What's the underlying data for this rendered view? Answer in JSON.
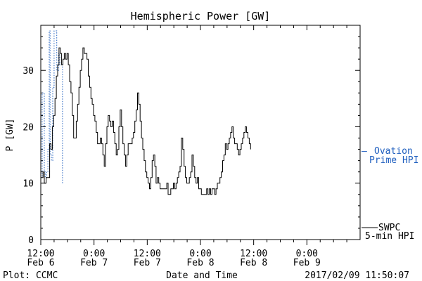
{
  "chart_data": {
    "type": "line",
    "title": "Hemispheric Power [GW]",
    "xlabel": "Date and Time",
    "ylabel": "P [GW]",
    "ylim": [
      0,
      38
    ],
    "xlim": [
      0,
      72
    ],
    "x_unit": "hours after 2017-02-06 12:00",
    "x_ticks": [
      {
        "x": 0,
        "time": "12:00",
        "date": "Feb 6"
      },
      {
        "x": 12,
        "time": "0:00",
        "date": "Feb 7"
      },
      {
        "x": 24,
        "time": "12:00",
        "date": "Feb 7"
      },
      {
        "x": 36,
        "time": "0:00",
        "date": "Feb 8"
      },
      {
        "x": 48,
        "time": "12:00",
        "date": "Feb 8"
      },
      {
        "x": 60,
        "time": "0:00",
        "date": "Feb 9"
      }
    ],
    "y_ticks": [
      0,
      10,
      20,
      30
    ],
    "grid": false,
    "series": [
      {
        "name": "Ovation Prime HPI",
        "color": "#1f5fbf",
        "style": "dashed",
        "values": [
          [
            0,
            11
          ],
          [
            0.3,
            26
          ],
          [
            0.6,
            26
          ],
          [
            0.8,
            12
          ],
          [
            1.0,
            11
          ],
          [
            1.3,
            12
          ],
          [
            1.6,
            16
          ],
          [
            1.9,
            37
          ],
          [
            2.1,
            15
          ],
          [
            2.4,
            14
          ],
          [
            2.7,
            27
          ],
          [
            3.0,
            37
          ],
          [
            3.3,
            37
          ],
          [
            3.6,
            30
          ],
          [
            4.0,
            33
          ],
          [
            4.3,
            31
          ],
          [
            4.6,
            31
          ],
          [
            4.9,
            10
          ]
        ]
      },
      {
        "name": "SWPC 5-min HPI",
        "color": "#000000",
        "style": "solid",
        "values": [
          [
            0,
            11
          ],
          [
            0.5,
            12
          ],
          [
            0.8,
            10
          ],
          [
            1.2,
            11
          ],
          [
            1.6,
            11
          ],
          [
            2.0,
            17
          ],
          [
            2.3,
            16
          ],
          [
            2.6,
            20
          ],
          [
            2.9,
            22
          ],
          [
            3.2,
            25
          ],
          [
            3.5,
            29
          ],
          [
            3.8,
            31
          ],
          [
            4.1,
            34
          ],
          [
            4.4,
            33
          ],
          [
            4.7,
            31
          ],
          [
            5.0,
            32
          ],
          [
            5.3,
            33
          ],
          [
            5.6,
            32
          ],
          [
            5.9,
            33
          ],
          [
            6.2,
            31
          ],
          [
            6.5,
            28
          ],
          [
            6.8,
            26
          ],
          [
            7.1,
            22
          ],
          [
            7.4,
            18
          ],
          [
            7.7,
            18
          ],
          [
            8.0,
            21
          ],
          [
            8.3,
            24
          ],
          [
            8.6,
            27
          ],
          [
            8.9,
            30
          ],
          [
            9.2,
            32
          ],
          [
            9.5,
            34
          ],
          [
            9.8,
            33
          ],
          [
            10.1,
            33
          ],
          [
            10.4,
            32
          ],
          [
            10.7,
            29
          ],
          [
            11.0,
            27
          ],
          [
            11.3,
            25
          ],
          [
            11.6,
            24
          ],
          [
            11.9,
            22
          ],
          [
            12.2,
            21
          ],
          [
            12.5,
            19
          ],
          [
            12.8,
            17
          ],
          [
            13.1,
            17
          ],
          [
            13.4,
            18
          ],
          [
            13.7,
            17
          ],
          [
            14.0,
            15
          ],
          [
            14.3,
            13
          ],
          [
            14.6,
            17
          ],
          [
            14.9,
            20
          ],
          [
            15.2,
            22
          ],
          [
            15.5,
            21
          ],
          [
            15.8,
            20
          ],
          [
            16.1,
            21
          ],
          [
            16.4,
            19
          ],
          [
            16.7,
            17
          ],
          [
            17.0,
            15
          ],
          [
            17.3,
            16
          ],
          [
            17.6,
            20
          ],
          [
            17.9,
            23
          ],
          [
            18.2,
            20
          ],
          [
            18.5,
            17
          ],
          [
            18.8,
            15
          ],
          [
            19.1,
            13
          ],
          [
            19.4,
            15
          ],
          [
            19.7,
            17
          ],
          [
            20.0,
            17
          ],
          [
            20.3,
            17
          ],
          [
            20.6,
            18
          ],
          [
            20.9,
            19
          ],
          [
            21.2,
            21
          ],
          [
            21.5,
            23
          ],
          [
            21.8,
            26
          ],
          [
            22.1,
            24
          ],
          [
            22.4,
            21
          ],
          [
            22.7,
            18
          ],
          [
            23.0,
            16
          ],
          [
            23.3,
            14
          ],
          [
            23.6,
            12
          ],
          [
            23.9,
            11
          ],
          [
            24.2,
            10
          ],
          [
            24.5,
            9
          ],
          [
            24.8,
            11
          ],
          [
            25.1,
            14
          ],
          [
            25.4,
            15
          ],
          [
            25.7,
            13
          ],
          [
            26.0,
            10
          ],
          [
            26.3,
            11
          ],
          [
            26.6,
            10
          ],
          [
            26.9,
            9
          ],
          [
            27.2,
            9
          ],
          [
            27.5,
            9
          ],
          [
            27.8,
            9
          ],
          [
            28.1,
            9
          ],
          [
            28.4,
            10
          ],
          [
            28.7,
            8
          ],
          [
            29.0,
            8
          ],
          [
            29.3,
            9
          ],
          [
            29.6,
            9
          ],
          [
            29.9,
            10
          ],
          [
            30.2,
            9
          ],
          [
            30.5,
            10
          ],
          [
            30.8,
            11
          ],
          [
            31.1,
            12
          ],
          [
            31.4,
            13
          ],
          [
            31.7,
            18
          ],
          [
            32.0,
            16
          ],
          [
            32.3,
            13
          ],
          [
            32.6,
            11
          ],
          [
            32.9,
            10
          ],
          [
            33.2,
            10
          ],
          [
            33.5,
            11
          ],
          [
            33.8,
            12
          ],
          [
            34.1,
            15
          ],
          [
            34.4,
            13
          ],
          [
            34.7,
            11
          ],
          [
            35.0,
            10
          ],
          [
            35.3,
            11
          ],
          [
            35.6,
            9
          ],
          [
            35.9,
            9
          ],
          [
            36.2,
            8
          ],
          [
            36.5,
            8
          ],
          [
            36.8,
            8
          ],
          [
            37.1,
            8
          ],
          [
            37.4,
            9
          ],
          [
            37.7,
            8
          ],
          [
            38.0,
            9
          ],
          [
            38.3,
            8
          ],
          [
            38.6,
            9
          ],
          [
            38.9,
            9
          ],
          [
            39.2,
            8
          ],
          [
            39.5,
            9
          ],
          [
            39.8,
            10
          ],
          [
            40.1,
            10
          ],
          [
            40.4,
            11
          ],
          [
            40.7,
            12
          ],
          [
            41.0,
            14
          ],
          [
            41.3,
            15
          ],
          [
            41.6,
            17
          ],
          [
            41.9,
            16
          ],
          [
            42.2,
            17
          ],
          [
            42.5,
            18
          ],
          [
            42.8,
            19
          ],
          [
            43.1,
            20
          ],
          [
            43.4,
            18
          ],
          [
            43.7,
            17
          ],
          [
            44.0,
            17
          ],
          [
            44.3,
            16
          ],
          [
            44.6,
            15
          ],
          [
            44.9,
            16
          ],
          [
            45.2,
            17
          ],
          [
            45.5,
            18
          ],
          [
            45.8,
            19
          ],
          [
            46.1,
            20
          ],
          [
            46.4,
            19
          ],
          [
            46.7,
            18
          ],
          [
            47.0,
            17
          ],
          [
            47.3,
            16
          ]
        ]
      }
    ],
    "annotations": {
      "left_footer": "Plot: CCMC",
      "right_footer": "2017/02/09 11:50:07"
    }
  },
  "legend": {
    "ovation": {
      "dash": "–",
      "line1": "Ovation",
      "line2": "Prime HPI"
    },
    "swpc": {
      "line1": "SWPC",
      "line2": "5-min HPI"
    }
  }
}
